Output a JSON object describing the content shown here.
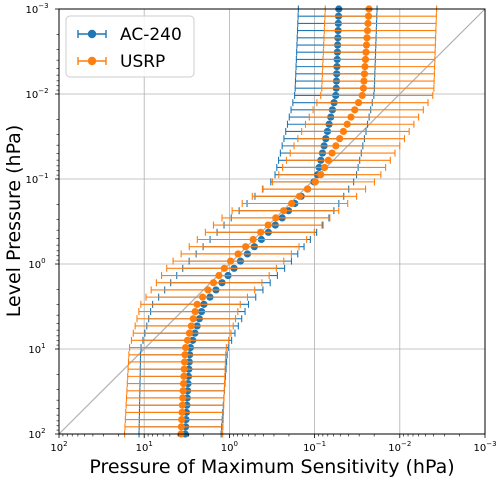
{
  "chart_data": {
    "type": "scatter",
    "title": "",
    "xlabel": "Pressure of Maximum Sensitivity (hPa)",
    "ylabel": "Level Pressure (hPa)",
    "xscale": "log",
    "yscale": "log",
    "x_inverted": true,
    "y_inverted": true,
    "xlim": [
      100,
      0.001
    ],
    "ylim": [
      100,
      0.001
    ],
    "grid": true,
    "legend_position": "upper-left",
    "x_ticks": [
      {
        "value": 100,
        "mant": "10",
        "exp": "2"
      },
      {
        "value": 10,
        "mant": "10",
        "exp": "1"
      },
      {
        "value": 1,
        "mant": "10",
        "exp": "0"
      },
      {
        "value": 0.1,
        "mant": "10",
        "exp": "−1"
      },
      {
        "value": 0.01,
        "mant": "10",
        "exp": "−2"
      },
      {
        "value": 0.001,
        "mant": "10",
        "exp": "−3"
      }
    ],
    "y_ticks": [
      {
        "value": 0.001,
        "mant": "10",
        "exp": "−3"
      },
      {
        "value": 0.01,
        "mant": "10",
        "exp": "−2"
      },
      {
        "value": 0.1,
        "mant": "10",
        "exp": "−1"
      },
      {
        "value": 1,
        "mant": "10",
        "exp": "0"
      },
      {
        "value": 10,
        "mant": "10",
        "exp": "1"
      },
      {
        "value": 100,
        "mant": "10",
        "exp": "2"
      }
    ],
    "reference_line": {
      "description": "one-to-one line",
      "color": "#b0b0b0"
    },
    "series": [
      {
        "name": "AC-240",
        "color": "#1f77b4",
        "points": [
          {
            "level": 0.001,
            "x": 0.052,
            "x_low": 0.155,
            "x_high": 0.0185
          },
          {
            "level": 0.01,
            "x": 0.056,
            "x_low": 0.17,
            "x_high": 0.02
          },
          {
            "level": 0.1,
            "x": 0.095,
            "x_low": 0.3,
            "x_high": 0.033
          },
          {
            "level": 0.3,
            "x": 0.25,
            "x_low": 1.0,
            "x_high": 0.07
          },
          {
            "level": 1,
            "x": 0.8,
            "x_low": 3.2,
            "x_high": 0.2
          },
          {
            "level": 3,
            "x": 2.0,
            "x_low": 8.0,
            "x_high": 0.6
          },
          {
            "level": 10,
            "x": 2.9,
            "x_low": 11.0,
            "x_high": 1.05
          },
          {
            "level": 100,
            "x": 3.3,
            "x_low": 11.5,
            "x_high": 1.25
          }
        ]
      },
      {
        "name": "USRP",
        "color": "#ff7f0e",
        "points": [
          {
            "level": 0.001,
            "x": 0.023,
            "x_low": 0.075,
            "x_high": 0.0037
          },
          {
            "level": 0.01,
            "x": 0.027,
            "x_low": 0.083,
            "x_high": 0.004
          },
          {
            "level": 0.1,
            "x": 0.09,
            "x_low": 0.28,
            "x_high": 0.018
          },
          {
            "level": 0.3,
            "x": 0.3,
            "x_low": 1.3,
            "x_high": 0.07
          },
          {
            "level": 1,
            "x": 1.05,
            "x_low": 5.0,
            "x_high": 0.25
          },
          {
            "level": 3,
            "x": 2.4,
            "x_low": 11.0,
            "x_high": 0.75
          },
          {
            "level": 10,
            "x": 3.3,
            "x_low": 15.0,
            "x_high": 1.1
          },
          {
            "level": 100,
            "x": 3.7,
            "x_low": 17.0,
            "x_high": 1.2
          }
        ]
      }
    ]
  }
}
